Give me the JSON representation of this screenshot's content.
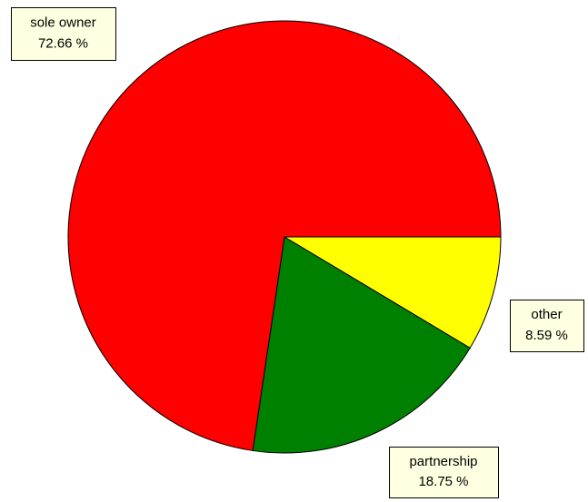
{
  "chart_data": {
    "type": "pie",
    "categories": [
      "other",
      "partnership",
      "sole owner"
    ],
    "values": [
      8.59,
      18.75,
      72.66
    ],
    "value_labels": [
      "8.59 %",
      "18.75 %",
      "72.66 %"
    ],
    "colors": [
      "#ffff00",
      "#008000",
      "#ff0000"
    ]
  }
}
